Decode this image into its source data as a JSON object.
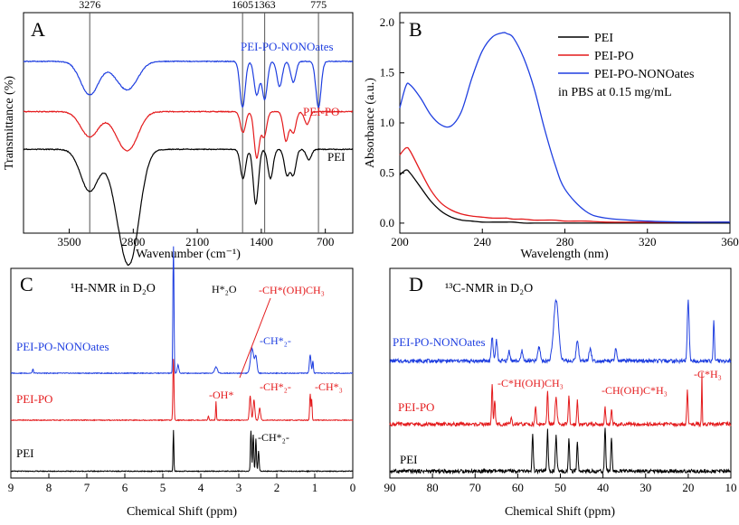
{
  "colors": {
    "black": "#000000",
    "red": "#e41a1c",
    "blue": "#1f3fe0"
  },
  "chart_data": [
    {
      "panel": "A",
      "type": "line",
      "title": "",
      "xlabel": "Wavenumber (cm⁻¹)",
      "ylabel": "Transmittance (%)",
      "x_ticks": [
        "3500",
        "2800",
        "2100",
        "1400",
        "700"
      ],
      "xlim": [
        4000,
        400
      ],
      "marker_lines": [
        "3276",
        "1605",
        "1363",
        "775"
      ],
      "series": [
        {
          "name": "PEI-PO-NONOates",
          "color": "#1f3fe0",
          "offset": 0.82,
          "peaks": [
            [
              3276,
              0.16
            ],
            [
              2950,
              0.06
            ],
            [
              2830,
              0.1
            ],
            [
              1605,
              0.22
            ],
            [
              1450,
              0.16
            ],
            [
              1363,
              0.18
            ],
            [
              1200,
              0.12
            ],
            [
              1050,
              0.1
            ],
            [
              775,
              0.22
            ]
          ]
        },
        {
          "name": "PEI-PO",
          "color": "#e41a1c",
          "offset": 0.58,
          "peaks": [
            [
              3276,
              0.12
            ],
            [
              2950,
              0.08
            ],
            [
              2830,
              0.14
            ],
            [
              1600,
              0.1
            ],
            [
              1450,
              0.22
            ],
            [
              1370,
              0.12
            ],
            [
              1130,
              0.14
            ],
            [
              1050,
              0.1
            ],
            [
              900,
              0.06
            ]
          ]
        },
        {
          "name": "PEI",
          "color": "#000000",
          "offset": 0.4,
          "peaks": [
            [
              3276,
              0.2
            ],
            [
              2950,
              0.22
            ],
            [
              2820,
              0.44
            ],
            [
              1600,
              0.14
            ],
            [
              1460,
              0.26
            ],
            [
              1300,
              0.14
            ],
            [
              1120,
              0.12
            ],
            [
              1050,
              0.12
            ],
            [
              880,
              0.05
            ]
          ]
        }
      ]
    },
    {
      "panel": "B",
      "type": "line",
      "title": "",
      "xlabel": "Wavelength (nm)",
      "ylabel": "Absorbance (a.u.)",
      "x": [
        200,
        203,
        205,
        210,
        215,
        220,
        225,
        230,
        235,
        240,
        245,
        250,
        252,
        255,
        260,
        265,
        270,
        275,
        280,
        290,
        300,
        320,
        340,
        360
      ],
      "xlim": [
        200,
        360
      ],
      "ylim": [
        -0.1,
        2.1
      ],
      "x_ticks": [
        "200",
        "240",
        "280",
        "320",
        "360"
      ],
      "y_ticks": [
        "0.0",
        "0.5",
        "1.0",
        "1.5",
        "2.0"
      ],
      "annotation": "in PBS at 0.15 mg/mL",
      "legend_position": "top-right",
      "series": [
        {
          "name": "PEI",
          "color": "#000000",
          "values": [
            0.48,
            0.53,
            0.5,
            0.36,
            0.22,
            0.12,
            0.06,
            0.03,
            0.02,
            0.01,
            0.01,
            0.01,
            0.01,
            0.01,
            0.0,
            0.0,
            0.0,
            0.0,
            0.0,
            0.0,
            0.0,
            0.0,
            0.0,
            0.0
          ]
        },
        {
          "name": "PEI-PO",
          "color": "#e41a1c",
          "values": [
            0.68,
            0.75,
            0.72,
            0.52,
            0.33,
            0.2,
            0.13,
            0.09,
            0.07,
            0.06,
            0.05,
            0.05,
            0.05,
            0.04,
            0.04,
            0.03,
            0.03,
            0.03,
            0.02,
            0.02,
            0.01,
            0.01,
            0.01,
            0.01
          ]
        },
        {
          "name": "PEI-PO-NONOates",
          "color": "#1f3fe0",
          "values": [
            1.15,
            1.37,
            1.38,
            1.25,
            1.08,
            0.98,
            0.97,
            1.12,
            1.45,
            1.72,
            1.86,
            1.9,
            1.89,
            1.85,
            1.65,
            1.35,
            0.95,
            0.6,
            0.34,
            0.12,
            0.05,
            0.02,
            0.01,
            0.01
          ]
        }
      ]
    },
    {
      "panel": "C",
      "type": "line",
      "title": "¹H-NMR in D₂O",
      "xlabel": "Chemical Shift (ppm)",
      "ylabel": "",
      "xlim": [
        9,
        0
      ],
      "x_ticks": [
        "9",
        "8",
        "7",
        "6",
        "5",
        "4",
        "3",
        "2",
        "1",
        "0"
      ],
      "series": [
        {
          "name": "PEI-PO-NONOates",
          "color": "#1f3fe0",
          "offset": 0.5,
          "peaks": [
            [
              8.42,
              0.02,
              0.02
            ],
            [
              4.72,
              0.62,
              0.02
            ],
            [
              4.6,
              0.04,
              0.03
            ],
            [
              3.6,
              0.03,
              0.05
            ],
            [
              2.65,
              0.12,
              0.06
            ],
            [
              2.55,
              0.08,
              0.04
            ],
            [
              1.12,
              0.09,
              0.03
            ],
            [
              1.05,
              0.06,
              0.02
            ]
          ]
        },
        {
          "name": "PEI-PO",
          "color": "#e41a1c",
          "offset": 0.27,
          "peaks": [
            [
              4.72,
              0.3,
              0.02
            ],
            [
              3.8,
              0.02,
              0.02
            ],
            [
              3.6,
              0.09,
              0.015
            ],
            [
              2.7,
              0.12,
              0.03
            ],
            [
              2.6,
              0.1,
              0.03
            ],
            [
              2.45,
              0.06,
              0.03
            ],
            [
              1.12,
              0.13,
              0.02
            ],
            [
              1.08,
              0.1,
              0.015
            ]
          ]
        },
        {
          "name": "PEI",
          "color": "#000000",
          "offset": 0.02,
          "peaks": [
            [
              4.72,
              0.2,
              0.015
            ],
            [
              2.68,
              0.2,
              0.02
            ],
            [
              2.62,
              0.18,
              0.02
            ],
            [
              2.55,
              0.16,
              0.02
            ],
            [
              2.48,
              0.1,
              0.02
            ]
          ]
        }
      ],
      "annotations": {
        "h2o": "H*₂O",
        "choh": "-CH*(OH)CH₃",
        "ch2_top": "-CH*₂-",
        "oh": "-OH*",
        "ch2_mid": "-CH*₂-",
        "ch3": "-CH*₃",
        "ch2_bottom": "-CH*₂-"
      }
    },
    {
      "panel": "D",
      "type": "line",
      "title": "¹³C-NMR in D₂O",
      "xlabel": "Chemical Shift (ppm)",
      "ylabel": "",
      "xlim": [
        90,
        10
      ],
      "x_ticks": [
        "90",
        "80",
        "70",
        "60",
        "50",
        "40",
        "30",
        "20",
        "10"
      ],
      "series": [
        {
          "name": "PEI-PO-NONOates",
          "color": "#1f3fe0",
          "offset": 0.56,
          "peaks": [
            [
              66,
              0.12,
              0.3
            ],
            [
              65,
              0.1,
              0.3
            ],
            [
              62,
              0.05,
              0.3
            ],
            [
              59,
              0.05,
              0.3
            ],
            [
              55,
              0.07,
              0.4
            ],
            [
              51,
              0.3,
              0.8
            ],
            [
              46,
              0.1,
              0.4
            ],
            [
              43,
              0.06,
              0.4
            ],
            [
              37,
              0.06,
              0.3
            ],
            [
              20,
              0.3,
              0.3
            ],
            [
              14,
              0.2,
              0.2
            ]
          ]
        },
        {
          "name": "PEI-PO",
          "color": "#e41a1c",
          "offset": 0.25,
          "peaks": [
            [
              66,
              0.19,
              0.2
            ],
            [
              65.4,
              0.12,
              0.2
            ],
            [
              61.5,
              0.03,
              0.2
            ],
            [
              55.8,
              0.09,
              0.2
            ],
            [
              53,
              0.16,
              0.2
            ],
            [
              51,
              0.13,
              0.3
            ],
            [
              48,
              0.14,
              0.2
            ],
            [
              46,
              0.12,
              0.2
            ],
            [
              39.5,
              0.08,
              0.2
            ],
            [
              38,
              0.08,
              0.2
            ],
            [
              20.2,
              0.17,
              0.2
            ],
            [
              16.8,
              0.25,
              0.12
            ]
          ]
        },
        {
          "name": "PEI",
          "color": "#000000",
          "offset": 0.02,
          "peaks": [
            [
              56.5,
              0.18,
              0.2
            ],
            [
              53,
              0.2,
              0.2
            ],
            [
              51,
              0.17,
              0.25
            ],
            [
              48,
              0.16,
              0.2
            ],
            [
              46,
              0.15,
              0.2
            ],
            [
              39.5,
              0.22,
              0.2
            ],
            [
              38,
              0.17,
              0.2
            ]
          ]
        }
      ],
      "annotations": {
        "choh": "-C*H(OH)CH₃",
        "ch3a": "-CH(OH)C*H₃",
        "ch3b": "-C*H₃"
      }
    }
  ]
}
